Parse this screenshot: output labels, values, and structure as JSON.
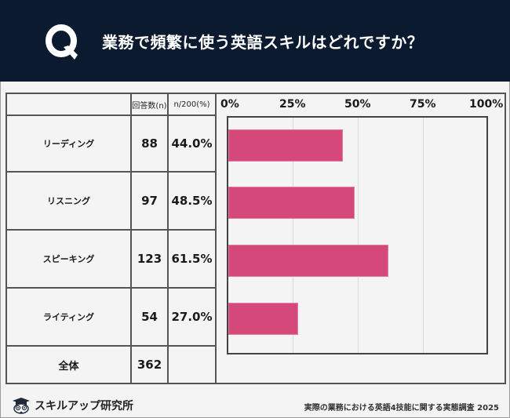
{
  "header": {
    "q_letter": "Q",
    "title": "業務で頻繁に使う英語スキルはどれですか？"
  },
  "table": {
    "columns": [
      "",
      "回答数(n)",
      "n/200(%)"
    ],
    "rows": [
      {
        "label": "リーディング",
        "n": "88",
        "pct": "44.0%"
      },
      {
        "label": "リスニング",
        "n": "97",
        "pct": "48.5%"
      },
      {
        "label": "スピーキング",
        "n": "123",
        "pct": "61.5%"
      },
      {
        "label": "ライティング",
        "n": "54",
        "pct": "27.0%"
      }
    ],
    "total": {
      "label": "全体",
      "n": "362",
      "pct": ""
    }
  },
  "axis": {
    "ticks": [
      "0%",
      "25%",
      "50%",
      "75%",
      "100%"
    ]
  },
  "footer": {
    "logo_text": "スキルアップ研究所",
    "caption": "実際の業務における英語4技能に関する実態調査 2025"
  },
  "colors": {
    "header_bg": "#0b1a2e",
    "bar": "#d4497a",
    "background": "#f4f4f4"
  },
  "chart_data": {
    "type": "bar",
    "orientation": "horizontal",
    "title": "業務で頻繁に使う英語スキルはどれですか？",
    "categories": [
      "リーディング",
      "リスニング",
      "スピーキング",
      "ライティング"
    ],
    "values": [
      44.0,
      48.5,
      61.5,
      27.0
    ],
    "counts": [
      88,
      97,
      123,
      54
    ],
    "total_count": 362,
    "xlabel": "n/200(%)",
    "ylabel": "",
    "xlim": [
      0,
      100
    ],
    "x_ticks": [
      "0%",
      "25%",
      "50%",
      "75%",
      "100%"
    ],
    "grid": true,
    "legend": null,
    "source": "実際の業務における英語4技能に関する実態調査 2025"
  }
}
